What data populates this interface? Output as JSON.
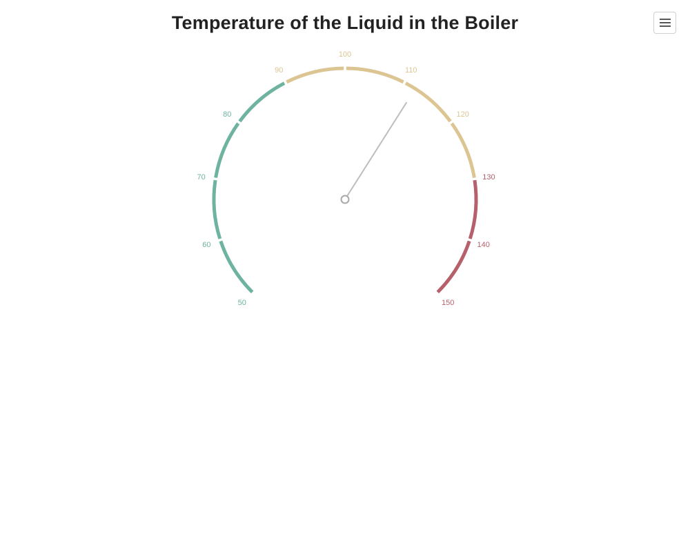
{
  "title": "Temperature of the Liquid in the Boiler",
  "menu": {
    "icon": "hamburger-menu-icon"
  },
  "chart_data": {
    "type": "gauge",
    "min": 50,
    "max": 150,
    "tick_interval": 10,
    "ticks": [
      50,
      60,
      70,
      80,
      90,
      100,
      110,
      120,
      130,
      140,
      150
    ],
    "value": 112,
    "bands": [
      {
        "from": 50,
        "to": 90,
        "color": "#6db3a0"
      },
      {
        "from": 90,
        "to": 130,
        "color": "#dcc592"
      },
      {
        "from": 130,
        "to": 150,
        "color": "#b5606a"
      }
    ],
    "needle_color": "#bdbdbd",
    "pivot_color": "#a8a8a8"
  }
}
